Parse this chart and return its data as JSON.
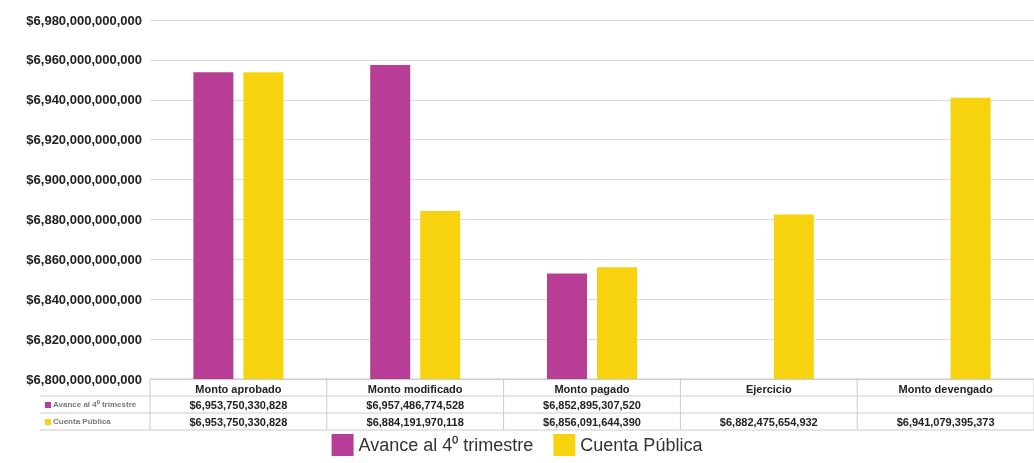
{
  "chart_data": {
    "type": "bar",
    "categories": [
      "Monto aprobado",
      "Monto modificado",
      "Monto pagado",
      "Ejercicio",
      "Monto devengado"
    ],
    "series": [
      {
        "name": "Avance al 4⁰ trimestre",
        "color": "#b83d96",
        "values": [
          6953750330828,
          6957486774528,
          6852895307520,
          null,
          null
        ],
        "value_labels": [
          "$6,953,750,330,828",
          "$6,957,486,774,528",
          "$6,852,895,307,520",
          null,
          null
        ]
      },
      {
        "name": "Cuenta Pública",
        "color": "#f7d30f",
        "values": [
          6953750330828,
          6884191970118,
          6856091644390,
          6882475654932,
          6941079395373
        ],
        "value_labels": [
          "$6,953,750,330,828",
          "$6,884,191,970,118",
          "$6,856,091,644,390",
          "$6,882,475,654,932",
          "$6,941,079,395,373"
        ]
      }
    ],
    "ylim": [
      6800000000000,
      6980000000000
    ],
    "yticks": [
      {
        "value": 6800000000000,
        "label": "$6,800,000,000,000"
      },
      {
        "value": 6820000000000,
        "label": "$6,820,000,000,000"
      },
      {
        "value": 6840000000000,
        "label": "$6,840,000,000,000"
      },
      {
        "value": 6860000000000,
        "label": "$6,860,000,000,000"
      },
      {
        "value": 6880000000000,
        "label": "$6,880,000,000,000"
      },
      {
        "value": 6900000000000,
        "label": "$6,900,000,000,000"
      },
      {
        "value": 6920000000000,
        "label": "$6,920,000,000,000"
      },
      {
        "value": 6940000000000,
        "label": "$6,940,000,000,000"
      },
      {
        "value": 6960000000000,
        "label": "$6,960,000,000,000"
      },
      {
        "value": 6980000000000,
        "label": "$6,980,000,000,000"
      }
    ],
    "grid": "y",
    "legend": "bottom"
  }
}
